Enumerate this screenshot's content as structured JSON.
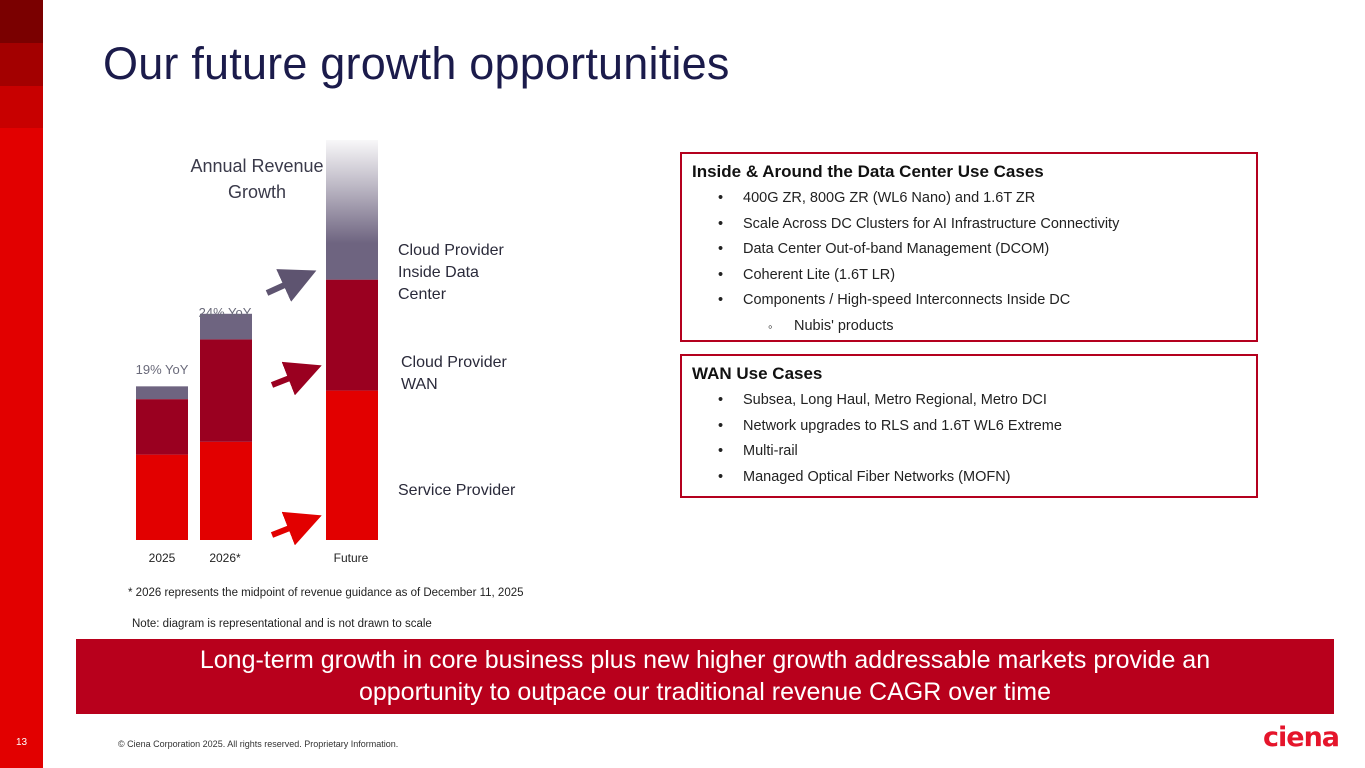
{
  "slide": {
    "title": "Our future growth opportunities",
    "page_number": "13",
    "copyright": "© Ciena Corporation 2025. All rights reserved. Proprietary Information.",
    "logo_text": "ciena",
    "accent": "#e20000",
    "dark_red": "#b8001c"
  },
  "chart_data": {
    "type": "bar",
    "title_lines": [
      "Annual Revenue",
      "Growth"
    ],
    "categories": [
      "2025",
      "2026*",
      "Future"
    ],
    "series": [
      {
        "name": "Service Provider",
        "color": "#e20000",
        "values": [
          1.0,
          1.15,
          1.75
        ]
      },
      {
        "name": "Cloud Provider WAN",
        "color": "#9a0020",
        "values": [
          0.65,
          1.2,
          1.3
        ]
      },
      {
        "name": "Cloud Provider Inside Data Center",
        "color": "#6e6480",
        "values": [
          0.15,
          0.3,
          1.7
        ]
      }
    ],
    "annotations": [
      "19% YoY",
      "24% YoY"
    ],
    "segment_labels": [
      "Cloud Provider Inside Data Center",
      "Cloud Provider WAN",
      "Service Provider"
    ],
    "ylim": [
      0,
      4.1
    ],
    "representational": true
  },
  "segments": {
    "inside_dc": [
      "Cloud Provider",
      "Inside Data",
      "Center"
    ],
    "wan": [
      "Cloud Provider",
      "WAN"
    ],
    "service": "Service Provider"
  },
  "box_dc": {
    "heading": "Inside & Around the Data Center Use Cases",
    "items": [
      "400G ZR, 800G ZR (WL6 Nano) and 1.6T ZR",
      "Scale Across DC Clusters for AI Infrastructure Connectivity",
      "Data Center Out-of-band Management (DCOM)",
      "Coherent Lite (1.6T LR)",
      "Components / High-speed Interconnects Inside DC"
    ],
    "sub_item": "Nubis' products"
  },
  "box_wan": {
    "heading": "WAN Use Cases",
    "items": [
      "Subsea, Long Haul, Metro Regional, Metro DCI",
      "Network upgrades to RLS and 1.6T WL6 Extreme",
      "Multi-rail",
      "Managed Optical Fiber Networks (MOFN)"
    ]
  },
  "notes": {
    "footnote": "* 2026 represents the midpoint of revenue guidance as of December 11, 2025",
    "disclaimer": "Note: diagram is representational and is not drawn to scale"
  },
  "banner": {
    "line1": "Long-term growth in core business plus new higher growth addressable markets provide an",
    "line2": "opportunity to outpace our traditional revenue CAGR over time"
  }
}
